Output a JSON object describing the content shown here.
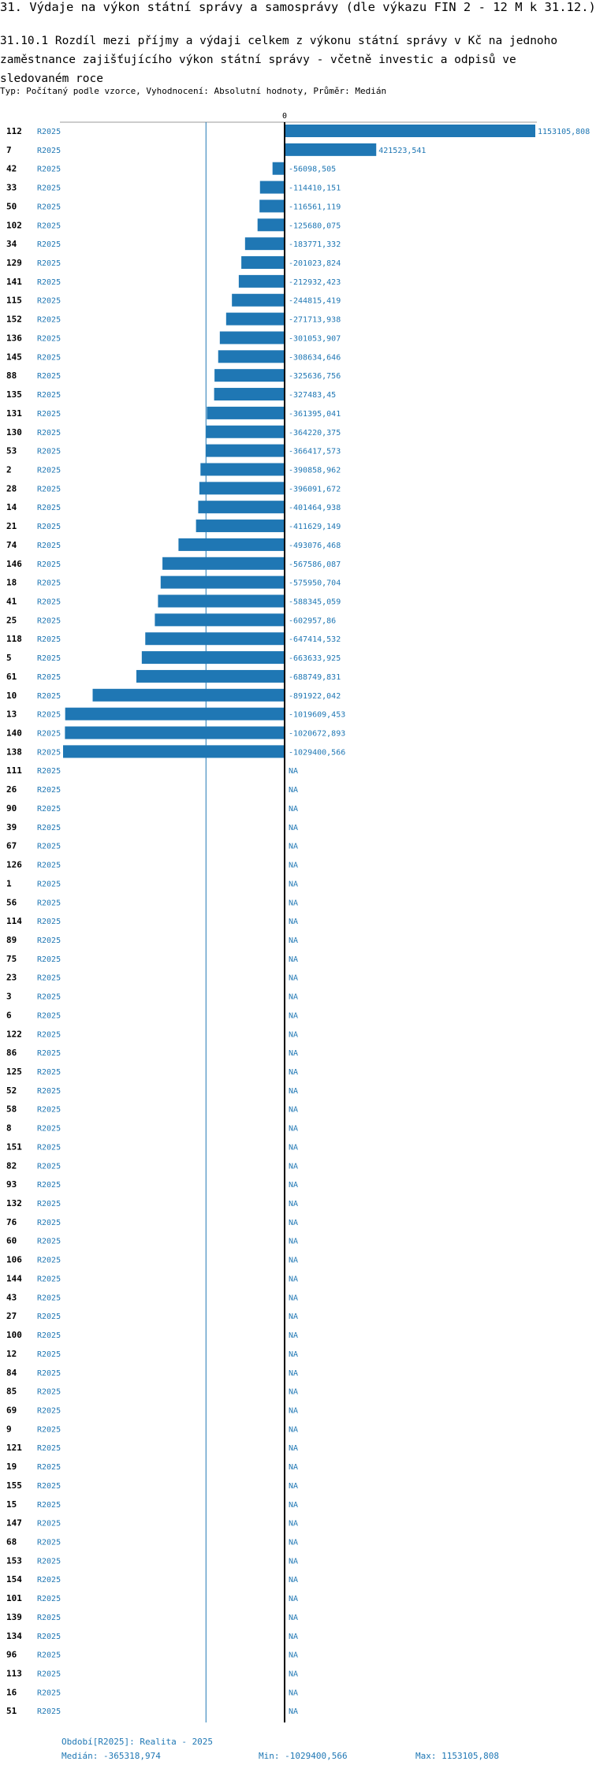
{
  "header": {
    "title": "31. Výdaje na výkon státní správy a samosprávy (dle výkazu FIN 2 - 12 M k 31.12.)",
    "subtitle": "31.10.1 Rozdíl mezi příjmy a výdaji celkem z výkonu státní správy v Kč na jednoho zaměstnance zajišťujícího výkon státní správy - včetně investic a odpisů ve sledovaném roce",
    "type_line": "Typ: Počítaný podle vzorce, Vyhodnocení: Absolutní hodnoty, Průměr: Medián"
  },
  "chart_data": {
    "type": "bar",
    "orientation": "horizontal",
    "zero_label": "0",
    "period": "R2025",
    "na_label": "NA",
    "median": -365318.974,
    "xlim": [
      -1029400.566,
      1153105.808
    ],
    "rows": [
      {
        "id": "112",
        "value": 1153105.808,
        "label": "1153105,808"
      },
      {
        "id": "7",
        "value": 421523.541,
        "label": "421523,541"
      },
      {
        "id": "42",
        "value": -56098.505,
        "label": "-56098,505"
      },
      {
        "id": "33",
        "value": -114410.151,
        "label": "-114410,151"
      },
      {
        "id": "50",
        "value": -116561.119,
        "label": "-116561,119"
      },
      {
        "id": "102",
        "value": -125680.075,
        "label": "-125680,075"
      },
      {
        "id": "34",
        "value": -183771.332,
        "label": "-183771,332"
      },
      {
        "id": "129",
        "value": -201023.824,
        "label": "-201023,824"
      },
      {
        "id": "141",
        "value": -212932.423,
        "label": "-212932,423"
      },
      {
        "id": "115",
        "value": -244815.419,
        "label": "-244815,419"
      },
      {
        "id": "152",
        "value": -271713.938,
        "label": "-271713,938"
      },
      {
        "id": "136",
        "value": -301053.907,
        "label": "-301053,907"
      },
      {
        "id": "145",
        "value": -308634.646,
        "label": "-308634,646"
      },
      {
        "id": "88",
        "value": -325636.756,
        "label": "-325636,756"
      },
      {
        "id": "135",
        "value": -327483.45,
        "label": "-327483,45"
      },
      {
        "id": "131",
        "value": -361395.041,
        "label": "-361395,041"
      },
      {
        "id": "130",
        "value": -364220.375,
        "label": "-364220,375"
      },
      {
        "id": "53",
        "value": -366417.573,
        "label": "-366417,573"
      },
      {
        "id": "2",
        "value": -390858.962,
        "label": "-390858,962"
      },
      {
        "id": "28",
        "value": -396091.672,
        "label": "-396091,672"
      },
      {
        "id": "14",
        "value": -401464.938,
        "label": "-401464,938"
      },
      {
        "id": "21",
        "value": -411629.149,
        "label": "-411629,149"
      },
      {
        "id": "74",
        "value": -493076.468,
        "label": "-493076,468"
      },
      {
        "id": "146",
        "value": -567586.087,
        "label": "-567586,087"
      },
      {
        "id": "18",
        "value": -575950.704,
        "label": "-575950,704"
      },
      {
        "id": "41",
        "value": -588345.059,
        "label": "-588345,059"
      },
      {
        "id": "25",
        "value": -602957.86,
        "label": "-602957,86"
      },
      {
        "id": "118",
        "value": -647414.532,
        "label": "-647414,532"
      },
      {
        "id": "5",
        "value": -663633.925,
        "label": "-663633,925"
      },
      {
        "id": "61",
        "value": -688749.831,
        "label": "-688749,831"
      },
      {
        "id": "10",
        "value": -891922.042,
        "label": "-891922,042"
      },
      {
        "id": "13",
        "value": -1019609.453,
        "label": "-1019609,453"
      },
      {
        "id": "140",
        "value": -1020672.893,
        "label": "-1020672,893"
      },
      {
        "id": "138",
        "value": -1029400.566,
        "label": "-1029400,566"
      },
      {
        "id": "111",
        "value": null,
        "label": "NA"
      },
      {
        "id": "26",
        "value": null,
        "label": "NA"
      },
      {
        "id": "90",
        "value": null,
        "label": "NA"
      },
      {
        "id": "39",
        "value": null,
        "label": "NA"
      },
      {
        "id": "67",
        "value": null,
        "label": "NA"
      },
      {
        "id": "126",
        "value": null,
        "label": "NA"
      },
      {
        "id": "1",
        "value": null,
        "label": "NA"
      },
      {
        "id": "56",
        "value": null,
        "label": "NA"
      },
      {
        "id": "114",
        "value": null,
        "label": "NA"
      },
      {
        "id": "89",
        "value": null,
        "label": "NA"
      },
      {
        "id": "75",
        "value": null,
        "label": "NA"
      },
      {
        "id": "23",
        "value": null,
        "label": "NA"
      },
      {
        "id": "3",
        "value": null,
        "label": "NA"
      },
      {
        "id": "6",
        "value": null,
        "label": "NA"
      },
      {
        "id": "122",
        "value": null,
        "label": "NA"
      },
      {
        "id": "86",
        "value": null,
        "label": "NA"
      },
      {
        "id": "125",
        "value": null,
        "label": "NA"
      },
      {
        "id": "52",
        "value": null,
        "label": "NA"
      },
      {
        "id": "58",
        "value": null,
        "label": "NA"
      },
      {
        "id": "8",
        "value": null,
        "label": "NA"
      },
      {
        "id": "151",
        "value": null,
        "label": "NA"
      },
      {
        "id": "82",
        "value": null,
        "label": "NA"
      },
      {
        "id": "93",
        "value": null,
        "label": "NA"
      },
      {
        "id": "132",
        "value": null,
        "label": "NA"
      },
      {
        "id": "76",
        "value": null,
        "label": "NA"
      },
      {
        "id": "60",
        "value": null,
        "label": "NA"
      },
      {
        "id": "106",
        "value": null,
        "label": "NA"
      },
      {
        "id": "144",
        "value": null,
        "label": "NA"
      },
      {
        "id": "43",
        "value": null,
        "label": "NA"
      },
      {
        "id": "27",
        "value": null,
        "label": "NA"
      },
      {
        "id": "100",
        "value": null,
        "label": "NA"
      },
      {
        "id": "12",
        "value": null,
        "label": "NA"
      },
      {
        "id": "84",
        "value": null,
        "label": "NA"
      },
      {
        "id": "85",
        "value": null,
        "label": "NA"
      },
      {
        "id": "69",
        "value": null,
        "label": "NA"
      },
      {
        "id": "9",
        "value": null,
        "label": "NA"
      },
      {
        "id": "121",
        "value": null,
        "label": "NA"
      },
      {
        "id": "19",
        "value": null,
        "label": "NA"
      },
      {
        "id": "155",
        "value": null,
        "label": "NA"
      },
      {
        "id": "15",
        "value": null,
        "label": "NA"
      },
      {
        "id": "147",
        "value": null,
        "label": "NA"
      },
      {
        "id": "68",
        "value": null,
        "label": "NA"
      },
      {
        "id": "153",
        "value": null,
        "label": "NA"
      },
      {
        "id": "154",
        "value": null,
        "label": "NA"
      },
      {
        "id": "101",
        "value": null,
        "label": "NA"
      },
      {
        "id": "139",
        "value": null,
        "label": "NA"
      },
      {
        "id": "134",
        "value": null,
        "label": "NA"
      },
      {
        "id": "96",
        "value": null,
        "label": "NA"
      },
      {
        "id": "113",
        "value": null,
        "label": "NA"
      },
      {
        "id": "16",
        "value": null,
        "label": "NA"
      },
      {
        "id": "51",
        "value": null,
        "label": "NA"
      }
    ]
  },
  "footer": {
    "period_note": "Období[R2025]: Realita - 2025",
    "median_text": "Medián: -365318,974",
    "min_text": "Min: -1029400,566",
    "max_text": "Max: 1153105,808"
  },
  "colors": {
    "bar": "#1f77b4",
    "label": "#1f77b4",
    "axis": "#000000",
    "median_line": "#1f77b4"
  }
}
